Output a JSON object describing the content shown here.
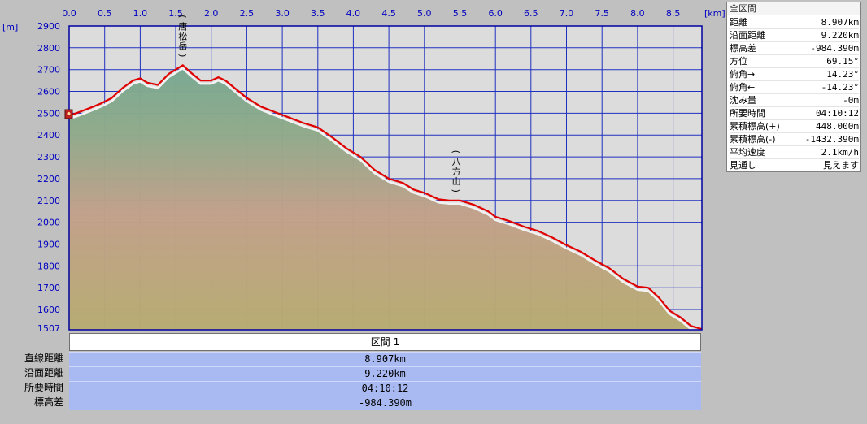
{
  "chart_data": {
    "type": "area",
    "x_unit": "[km]",
    "y_unit": "[m]",
    "xlim": [
      0,
      8.907
    ],
    "ylim": [
      1507,
      2900
    ],
    "x_ticks": [
      0.0,
      0.5,
      1.0,
      1.5,
      2.0,
      2.5,
      3.0,
      3.5,
      4.0,
      4.5,
      5.0,
      5.5,
      6.0,
      6.5,
      7.0,
      7.5,
      8.0,
      8.5
    ],
    "x_tick_labels": [
      "0.0",
      "0.5",
      "1.0",
      "1.5",
      "2.0",
      "2.5",
      "3.0",
      "3.5",
      "4.0",
      "4.5",
      "5.0",
      "5.5",
      "6.0",
      "6.5",
      "7.0",
      "7.5",
      "8.0",
      "8.5"
    ],
    "y_tick_labels": [
      "2900",
      "2800",
      "2700",
      "2600",
      "2500",
      "2400",
      "2300",
      "2200",
      "2100",
      "2000",
      "1900",
      "1800",
      "1700",
      "1600",
      "1507"
    ],
    "grid": true,
    "series": [
      {
        "line_color": "#e00000",
        "x": [
          0,
          0.1,
          0.3,
          0.45,
          0.6,
          0.75,
          0.9,
          1.0,
          1.1,
          1.25,
          1.4,
          1.5,
          1.6,
          1.7,
          1.85,
          2.0,
          2.1,
          2.2,
          2.35,
          2.5,
          2.7,
          2.9,
          3.1,
          3.3,
          3.5,
          3.7,
          3.9,
          4.1,
          4.3,
          4.5,
          4.7,
          4.85,
          5.0,
          5.2,
          5.35,
          5.5,
          5.7,
          5.9,
          6.0,
          6.2,
          6.4,
          6.6,
          6.8,
          7.0,
          7.2,
          7.4,
          7.6,
          7.8,
          8.0,
          8.15,
          8.3,
          8.45,
          8.6,
          8.75,
          8.907
        ],
        "y": [
          2490,
          2500,
          2525,
          2545,
          2570,
          2615,
          2650,
          2660,
          2640,
          2630,
          2680,
          2700,
          2720,
          2690,
          2650,
          2650,
          2665,
          2650,
          2610,
          2570,
          2530,
          2505,
          2480,
          2455,
          2435,
          2390,
          2340,
          2300,
          2240,
          2200,
          2180,
          2150,
          2135,
          2105,
          2100,
          2100,
          2080,
          2050,
          2025,
          2005,
          1980,
          1960,
          1930,
          1895,
          1865,
          1825,
          1790,
          1740,
          1705,
          1700,
          1655,
          1595,
          1565,
          1525,
          1510
        ]
      }
    ],
    "annotations": [
      {
        "text": "(唐松岳)",
        "x": 1.6
      },
      {
        "text": "(八方山)",
        "x": 5.45
      }
    ]
  },
  "stats": {
    "title": "全区間",
    "rows": [
      {
        "label": "距離",
        "value": "8.907km"
      },
      {
        "label": "沿面距離",
        "value": "9.220km"
      },
      {
        "label": "標高差",
        "value": "-984.390m"
      },
      {
        "label": "方位",
        "value": "69.15°"
      },
      {
        "label": "俯角→",
        "value": "14.23°"
      },
      {
        "label": "俯角←",
        "value": "-14.23°"
      },
      {
        "label": "沈み量",
        "value": "-0m"
      },
      {
        "label": "所要時間",
        "value": "04:10:12"
      },
      {
        "label": "累積標高(+)",
        "value": "448.000m"
      },
      {
        "label": "累積標高(-)",
        "value": "-1432.390m"
      },
      {
        "label": "平均速度",
        "value": "2.1km/h"
      },
      {
        "label": "見通し",
        "value": "見えます"
      }
    ]
  },
  "section": {
    "header": "区間 1",
    "rows": [
      {
        "label": "直線距離",
        "value": "8.907km"
      },
      {
        "label": "沿面距離",
        "value": "9.220km"
      },
      {
        "label": "所要時間",
        "value": "04:10:12"
      },
      {
        "label": "標高差",
        "value": "-984.390m"
      }
    ]
  }
}
